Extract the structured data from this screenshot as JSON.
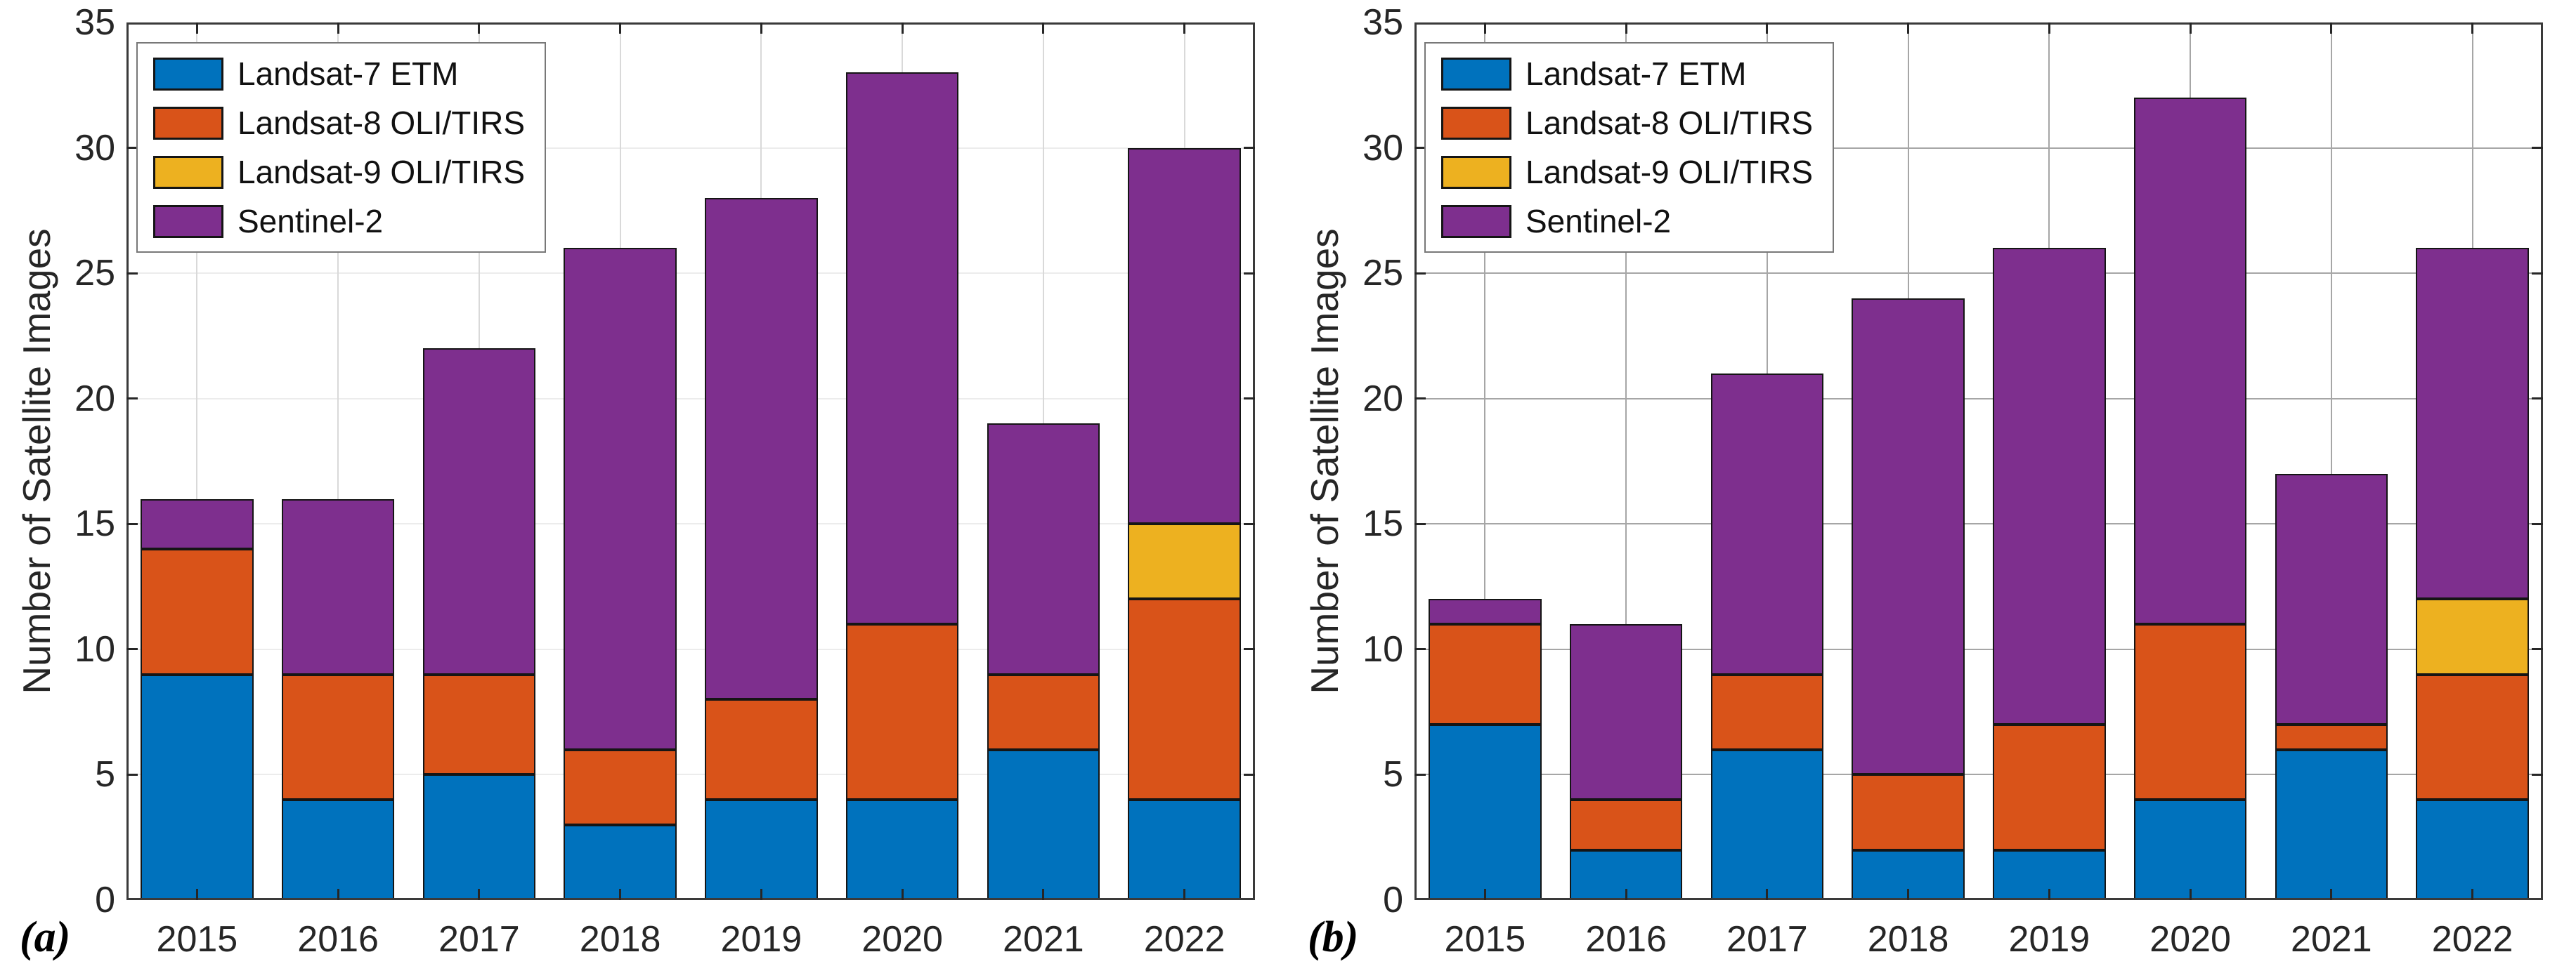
{
  "figure": {
    "background": "#ffffff",
    "axis_color": "#3a3a3a",
    "tick_label_color": "#262626",
    "bar_edge_color": "#151515",
    "legend_border_color": "#787878",
    "panels": [
      {
        "tag": "(a)"
      },
      {
        "tag": "(b)"
      }
    ]
  },
  "chart_data": [
    {
      "type": "bar",
      "stacked": true,
      "panel_label": "(a)",
      "title": "",
      "xlabel": "",
      "ylabel": "Number of Satellite Images",
      "categories": [
        "2015",
        "2016",
        "2017",
        "2018",
        "2019",
        "2020",
        "2021",
        "2022"
      ],
      "series": [
        {
          "name": "Landsat-7 ETM",
          "color": "#0072BD",
          "values": [
            9,
            4,
            5,
            3,
            4,
            4,
            6,
            4
          ]
        },
        {
          "name": "Landsat-8 OLI/TIRS",
          "color": "#D95319",
          "values": [
            5,
            5,
            4,
            3,
            4,
            7,
            3,
            8
          ]
        },
        {
          "name": "Landsat-9 OLI/TIRS",
          "color": "#EDB120",
          "values": [
            0,
            0,
            0,
            0,
            0,
            0,
            0,
            3
          ]
        },
        {
          "name": "Sentinel-2",
          "color": "#7E2F8E",
          "values": [
            2,
            7,
            13,
            20,
            20,
            22,
            10,
            15
          ]
        }
      ],
      "stack_totals": [
        16,
        16,
        22,
        26,
        28,
        33,
        19,
        30
      ],
      "ylim": [
        0,
        35
      ],
      "yticks": [
        0,
        5,
        10,
        15,
        20,
        25,
        30,
        35
      ],
      "grid": true,
      "grid_color_h": "#ececec",
      "grid_color_v": "#d9d9d9",
      "legend_position": "top-left",
      "bar_width_fraction": 0.8
    },
    {
      "type": "bar",
      "stacked": true,
      "panel_label": "(b)",
      "title": "",
      "xlabel": "",
      "ylabel": "Number of Satellite Images",
      "categories": [
        "2015",
        "2016",
        "2017",
        "2018",
        "2019",
        "2020",
        "2021",
        "2022"
      ],
      "series": [
        {
          "name": "Landsat-7 ETM",
          "color": "#0072BD",
          "values": [
            7,
            2,
            6,
            2,
            2,
            4,
            6,
            4
          ]
        },
        {
          "name": "Landsat-8 OLI/TIRS",
          "color": "#D95319",
          "values": [
            4,
            2,
            3,
            3,
            5,
            7,
            1,
            5
          ]
        },
        {
          "name": "Landsat-9 OLI/TIRS",
          "color": "#EDB120",
          "values": [
            0,
            0,
            0,
            0,
            0,
            0,
            0,
            3
          ]
        },
        {
          "name": "Sentinel-2",
          "color": "#7E2F8E",
          "values": [
            1,
            7,
            12,
            19,
            19,
            21,
            10,
            14
          ]
        }
      ],
      "stack_totals": [
        12,
        11,
        21,
        24,
        26,
        32,
        17,
        26
      ],
      "ylim": [
        0,
        35
      ],
      "yticks": [
        0,
        5,
        10,
        15,
        20,
        25,
        30,
        35
      ],
      "grid": true,
      "grid_color_h": "#a6a6a6",
      "grid_color_v": "#a6a6a6",
      "legend_position": "top-left",
      "bar_width_fraction": 0.8
    }
  ]
}
